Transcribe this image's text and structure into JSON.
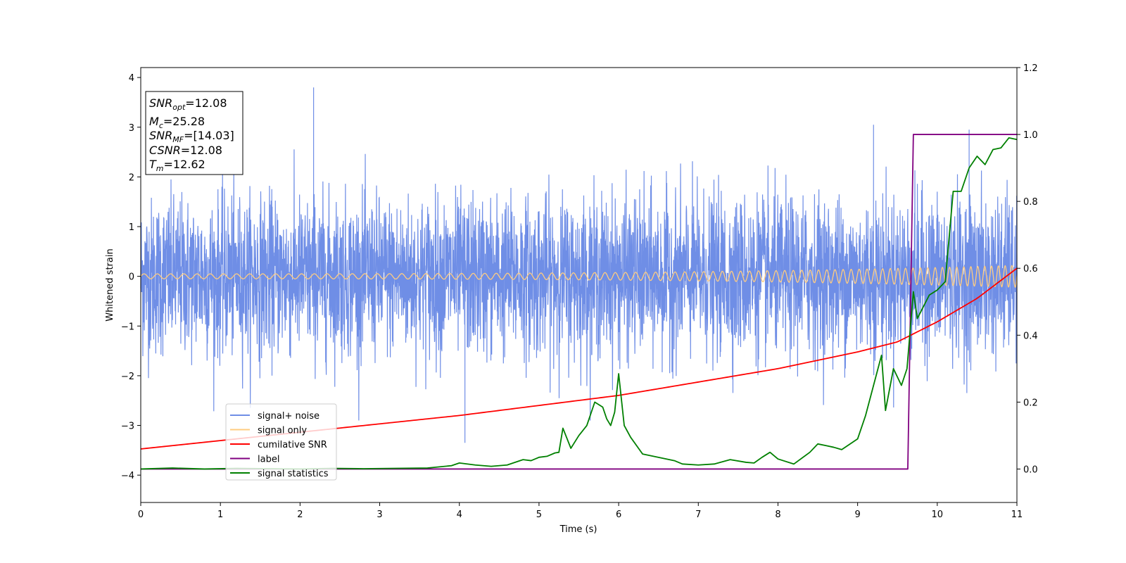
{
  "chart_data": {
    "type": "line",
    "xlabel": "Time (s)",
    "ylabel": "Whitened strain",
    "xlim": [
      0,
      11
    ],
    "ylim_left": [
      -4.55,
      4.2
    ],
    "ylim_right": [
      -0.1,
      1.2
    ],
    "x_ticks": [
      0,
      1,
      2,
      3,
      4,
      5,
      6,
      7,
      8,
      9,
      10,
      11
    ],
    "y_ticks_left": [
      -4,
      -3,
      -2,
      -1,
      0,
      1,
      2,
      3,
      4
    ],
    "y_tick_labels_left": [
      "−4",
      "−3",
      "−2",
      "−1",
      "0",
      "1",
      "2",
      "3",
      "4"
    ],
    "y_ticks_right": [
      0.0,
      0.2,
      0.4,
      0.6,
      0.8,
      1.0,
      1.2
    ],
    "y_tick_labels_right": [
      "0.0",
      "0.2",
      "0.4",
      "0.6",
      "0.8",
      "1.0",
      "1.2"
    ],
    "stats_box": {
      "lines": [
        {
          "base": "SNR",
          "sub": "opt",
          "rest": "=12.08"
        },
        {
          "base": "M",
          "sub": "c",
          "rest": "=25.28"
        },
        {
          "base": "SNR",
          "sub": "MF",
          "rest": "=[14.03]"
        },
        {
          "base": "CSNR",
          "sub": "",
          "rest": "=12.08"
        },
        {
          "base": "T",
          "sub": "m",
          "rest": "=12.62"
        }
      ]
    },
    "legend": {
      "placement": "lower-left",
      "entries": [
        {
          "label": "signal+ noise",
          "color": "#6f8ee6"
        },
        {
          "label": "signal only",
          "color": "#ffcc80"
        },
        {
          "label": "cumilative SNR",
          "color": "#ff0000"
        },
        {
          "label": "label",
          "color": "#800080"
        },
        {
          "label": "signal statistics",
          "color": "#008000"
        }
      ]
    },
    "series": [
      {
        "name": "signal+ noise",
        "axis": "left",
        "color": "#6f8ee6",
        "kind": "noise",
        "description_values": {
          "mean": 0.0,
          "typical_min": -2.0,
          "typical_max": 2.5,
          "extreme_max": 3.8,
          "extreme_min": -3.35
        }
      },
      {
        "name": "signal only",
        "axis": "left",
        "color": "#ffcc80",
        "kind": "chirp",
        "amplitude_start": 0.05,
        "amplitude_end": 0.22,
        "cycles_per_s_start": 6,
        "cycles_per_s_end": 12
      },
      {
        "name": "cumilative SNR",
        "axis": "right",
        "color": "#ff0000",
        "x": [
          0,
          1,
          2,
          3,
          4,
          5,
          6,
          7,
          8,
          9,
          9.5,
          10,
          10.5,
          11
        ],
        "y": [
          0.06,
          0.085,
          0.11,
          0.135,
          0.16,
          0.19,
          0.22,
          0.26,
          0.3,
          0.35,
          0.38,
          0.44,
          0.51,
          0.6
        ]
      },
      {
        "name": "label",
        "axis": "right",
        "color": "#800080",
        "x": [
          0,
          9.63,
          9.7,
          11
        ],
        "y": [
          0.0,
          0.0,
          1.0,
          1.0
        ]
      },
      {
        "name": "signal statistics",
        "axis": "right",
        "color": "#008000",
        "x": [
          0,
          0.4,
          0.8,
          1.2,
          1.6,
          2.0,
          2.4,
          2.8,
          3.2,
          3.6,
          3.9,
          4.0,
          4.2,
          4.4,
          4.6,
          4.8,
          4.9,
          5.0,
          5.1,
          5.2,
          5.25,
          5.3,
          5.4,
          5.5,
          5.6,
          5.7,
          5.8,
          5.85,
          5.9,
          5.95,
          6.0,
          6.07,
          6.15,
          6.3,
          6.5,
          6.7,
          6.8,
          7.0,
          7.2,
          7.4,
          7.6,
          7.7,
          7.8,
          7.9,
          8.0,
          8.2,
          8.4,
          8.5,
          8.6,
          8.7,
          8.8,
          9.0,
          9.1,
          9.2,
          9.3,
          9.35,
          9.45,
          9.55,
          9.62,
          9.7,
          9.75,
          9.9,
          10.0,
          10.1,
          10.2,
          10.3,
          10.4,
          10.5,
          10.6,
          10.7,
          10.8,
          10.9,
          11
        ],
        "y": [
          0.0,
          0.003,
          0.0,
          0.002,
          0.001,
          0.0,
          0.002,
          0.001,
          0.002,
          0.003,
          0.01,
          0.018,
          0.012,
          0.008,
          0.012,
          0.028,
          0.025,
          0.035,
          0.038,
          0.048,
          0.05,
          0.122,
          0.062,
          0.1,
          0.13,
          0.2,
          0.185,
          0.15,
          0.13,
          0.17,
          0.285,
          0.13,
          0.095,
          0.045,
          0.035,
          0.025,
          0.015,
          0.012,
          0.015,
          0.028,
          0.02,
          0.018,
          0.035,
          0.05,
          0.03,
          0.015,
          0.05,
          0.075,
          0.07,
          0.065,
          0.058,
          0.09,
          0.16,
          0.25,
          0.34,
          0.175,
          0.3,
          0.25,
          0.3,
          0.53,
          0.45,
          0.52,
          0.535,
          0.56,
          0.83,
          0.83,
          0.9,
          0.935,
          0.91,
          0.955,
          0.96,
          0.99,
          0.985
        ]
      }
    ]
  }
}
